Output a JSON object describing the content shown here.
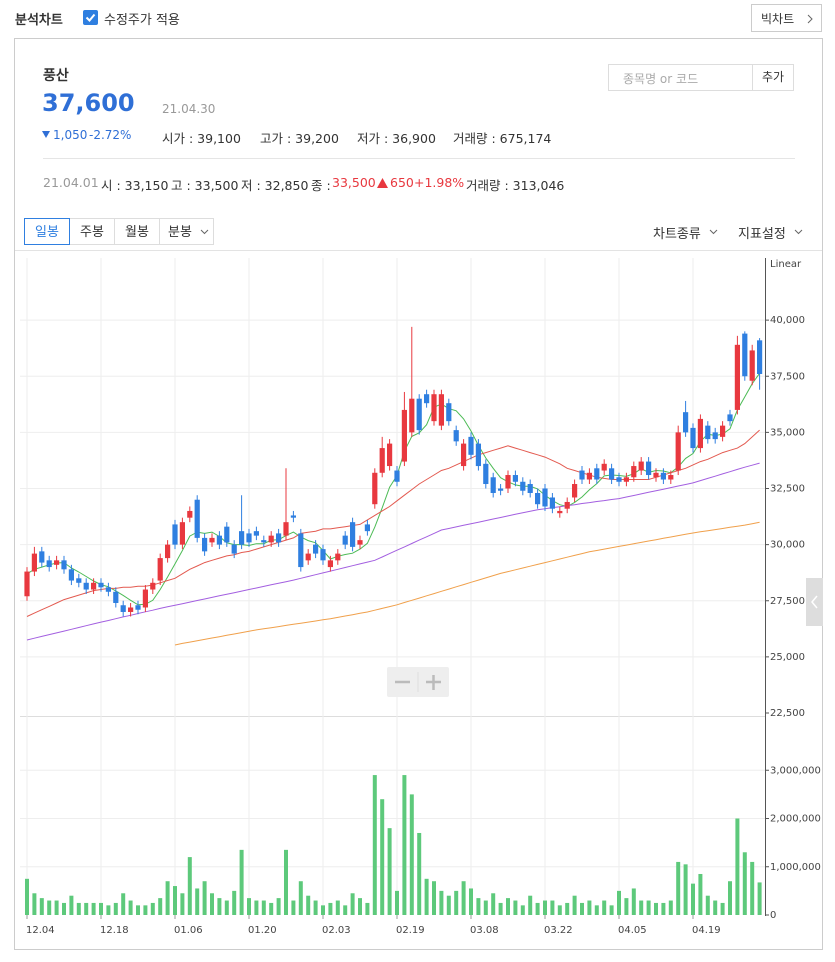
{
  "page": {
    "tab": "분석차트",
    "adjusted_price": "수정주가 적용",
    "big_chart": "빅차트"
  },
  "stock": {
    "name": "풍산",
    "price": "37,600",
    "date": "21.04.30",
    "change": "1,050",
    "change_rate": "-2.72%",
    "stats": [
      "시가 : 39,100",
      "고가 : 39,200",
      "저가 : 36,900",
      "거래량 : 675,174"
    ]
  },
  "search": {
    "placeholder": "종목명 or 코드",
    "button": "추가"
  },
  "daily": {
    "date": "21.04.01",
    "open": "시 : 33,150",
    "high": "고 : 33,500",
    "low": "저 : 32,850",
    "close_label": "종 :",
    "close": "33,500",
    "change": "650",
    "change_rate": "+1.98%",
    "volume": "거래량 : 313,046"
  },
  "toolbar": {
    "periods": [
      "일봉",
      "주봉",
      "월봉",
      "분봉"
    ],
    "menus": [
      "차트종류",
      "지표설정"
    ]
  },
  "chart_data": {
    "type": "candlestick",
    "y_axis_label": "Linear",
    "grid": true,
    "up_color": "#e8383f",
    "down_color": "#2f7fe0",
    "volume_color": "#5dc97b",
    "categories": [
      "12.04",
      null,
      null,
      null,
      null,
      null,
      null,
      null,
      null,
      null,
      "12.18",
      null,
      null,
      null,
      null,
      null,
      null,
      null,
      null,
      null,
      "01.06",
      null,
      null,
      null,
      null,
      null,
      null,
      null,
      null,
      null,
      "01.20",
      null,
      null,
      null,
      null,
      null,
      null,
      null,
      null,
      null,
      "02.03",
      null,
      null,
      null,
      null,
      null,
      null,
      null,
      null,
      null,
      "02.19",
      null,
      null,
      null,
      null,
      null,
      null,
      null,
      null,
      null,
      "03.08",
      null,
      null,
      null,
      null,
      null,
      null,
      null,
      null,
      null,
      "03.22",
      null,
      null,
      null,
      null,
      null,
      null,
      null,
      null,
      null,
      "04.05",
      null,
      null,
      null,
      null,
      null,
      null,
      null,
      null,
      null,
      "04.19",
      null,
      null,
      null,
      null,
      null,
      null,
      null,
      null,
      null
    ],
    "open": [
      27700,
      28800,
      29700,
      29300,
      29100,
      29300,
      28900,
      28500,
      28300,
      28000,
      28300,
      28100,
      27900,
      27300,
      27000,
      27300,
      27200,
      28000,
      28400,
      29400,
      30900,
      30000,
      31200,
      32000,
      30300,
      30100,
      30400,
      30800,
      30000,
      30600,
      30500,
      30600,
      30200,
      30100,
      30500,
      30400,
      31300,
      30500,
      29300,
      30000,
      29800,
      29000,
      29300,
      30400,
      31000,
      30000,
      30900,
      31800,
      33200,
      33500,
      33300,
      33700,
      35000,
      36500,
      36700,
      35500,
      35300,
      36300,
      35100,
      33500,
      34800,
      34500,
      33600,
      33000,
      32500,
      32500,
      33100,
      32800,
      32700,
      32300,
      32500,
      32100,
      31400,
      31600,
      32100,
      33300,
      32900,
      33400,
      33300,
      33400,
      33000,
      32800,
      33000,
      33300,
      33700,
      33000,
      33200,
      32900,
      33300,
      35900,
      35200,
      34300,
      35300,
      35000,
      34800,
      35800,
      36000,
      39400,
      37300,
      39100
    ],
    "high": [
      29000,
      29900,
      29900,
      29500,
      29500,
      29500,
      29100,
      28700,
      28500,
      28500,
      28500,
      28300,
      28100,
      27500,
      27400,
      27500,
      28200,
      28500,
      29600,
      30200,
      31100,
      31200,
      31700,
      32200,
      30500,
      30500,
      30600,
      31000,
      30200,
      32200,
      30700,
      30800,
      30400,
      30600,
      30700,
      33400,
      31500,
      30700,
      29800,
      30200,
      30000,
      29500,
      29800,
      30600,
      31200,
      30400,
      31100,
      33400,
      34800,
      34700,
      33500,
      36800,
      39700,
      36700,
      36900,
      36900,
      36900,
      36500,
      35300,
      34700,
      35000,
      34700,
      33800,
      33200,
      32700,
      33300,
      33300,
      33000,
      32900,
      32500,
      32700,
      32300,
      31700,
      32100,
      32900,
      33500,
      33400,
      33600,
      33800,
      33600,
      33200,
      33200,
      33700,
      33900,
      33900,
      33400,
      33400,
      33300,
      35300,
      36400,
      35400,
      35800,
      35500,
      35200,
      35500,
      36000,
      39300,
      39500,
      38900,
      39200
    ],
    "low": [
      27500,
      28600,
      29000,
      28800,
      28900,
      28700,
      28200,
      28100,
      27800,
      27800,
      27900,
      27700,
      27200,
      26800,
      26800,
      26900,
      27000,
      27800,
      28200,
      29200,
      29800,
      29800,
      31000,
      30100,
      29500,
      29900,
      29800,
      29900,
      29400,
      29800,
      29900,
      30200,
      29900,
      29900,
      29900,
      30200,
      31000,
      28800,
      29100,
      29400,
      29100,
      28800,
      29100,
      29800,
      29700,
      29800,
      30400,
      31600,
      33000,
      33300,
      32600,
      33500,
      34800,
      34900,
      36100,
      35300,
      35100,
      35300,
      34400,
      33300,
      33800,
      33300,
      32500,
      32100,
      32200,
      32300,
      32600,
      32200,
      32100,
      31600,
      31500,
      31400,
      31200,
      31400,
      31900,
      32700,
      32700,
      32700,
      33100,
      32700,
      32600,
      32600,
      32800,
      33100,
      32900,
      32800,
      32700,
      32700,
      33100,
      34800,
      34100,
      34100,
      34500,
      34500,
      34600,
      35300,
      35800,
      37300,
      37100,
      36900
    ],
    "close": [
      28800,
      29600,
      29200,
      29000,
      29300,
      28900,
      28400,
      28300,
      28000,
      28300,
      28100,
      27900,
      27400,
      27000,
      27200,
      27100,
      28000,
      28300,
      29400,
      30000,
      30000,
      31000,
      31500,
      30300,
      29700,
      30300,
      30000,
      30100,
      29600,
      30000,
      30100,
      30400,
      30100,
      30400,
      30100,
      31000,
      31200,
      29000,
      29600,
      29600,
      29300,
      29300,
      29600,
      30000,
      29900,
      30200,
      30600,
      33200,
      34300,
      34500,
      32800,
      36000,
      36500,
      35100,
      36300,
      36700,
      36700,
      35500,
      34600,
      34500,
      34000,
      33500,
      32700,
      32300,
      32400,
      33100,
      32800,
      32400,
      32300,
      31800,
      31700,
      31600,
      31500,
      31900,
      32700,
      32900,
      33200,
      32900,
      33600,
      32900,
      32800,
      33000,
      33500,
      33700,
      33100,
      33200,
      32900,
      33100,
      35000,
      35000,
      34300,
      35600,
      34700,
      34700,
      35300,
      35500,
      38900,
      37500,
      38650,
      37600
    ],
    "volume": [
      750000,
      450000,
      350000,
      300000,
      300000,
      250000,
      400000,
      250000,
      250000,
      250000,
      250000,
      200000,
      250000,
      450000,
      300000,
      200000,
      200000,
      250000,
      350000,
      700000,
      600000,
      450000,
      1200000,
      550000,
      700000,
      450000,
      350000,
      300000,
      500000,
      1350000,
      350000,
      300000,
      300000,
      250000,
      350000,
      1350000,
      300000,
      700000,
      400000,
      300000,
      200000,
      250000,
      300000,
      200000,
      450000,
      350000,
      250000,
      2900000,
      2400000,
      1800000,
      500000,
      2900000,
      2500000,
      1700000,
      750000,
      700000,
      500000,
      400000,
      500000,
      700000,
      550000,
      350000,
      300000,
      450000,
      250000,
      350000,
      300000,
      200000,
      400000,
      250000,
      300000,
      300000,
      200000,
      250000,
      400000,
      250000,
      300000,
      200000,
      300000,
      200000,
      500000,
      350000,
      550000,
      300000,
      300000,
      250000,
      250000,
      300000,
      1100000,
      1050000,
      650000,
      850000,
      400000,
      300000,
      250000,
      700000,
      2000000,
      1300000,
      1100000,
      675174
    ],
    "series": [
      {
        "color": "#4cbb55",
        "values": [
          28700,
          28900,
          29000,
          29100,
          29180,
          29200,
          28960,
          28780,
          28580,
          28380,
          28220,
          28120,
          27940,
          27740,
          27520,
          27320,
          27340,
          27520,
          28000,
          28560,
          29140,
          29740,
          30380,
          30560,
          30500,
          30560,
          30360,
          30080,
          30000,
          30000,
          29960,
          30040,
          30040,
          30200,
          30220,
          30400,
          30560,
          30340,
          30180,
          30080,
          29740,
          29360,
          29480,
          29560,
          29620,
          29800,
          30060,
          30780,
          31640,
          32560,
          33080,
          34160,
          34820,
          34980,
          35340,
          36120,
          36260,
          36060,
          35960,
          35600,
          35060,
          34420,
          33860,
          33400,
          32980,
          32800,
          32660,
          32600,
          32600,
          32480,
          32200,
          31960,
          31780,
          31700,
          31880,
          32120,
          32440,
          32720,
          33060,
          33100,
          33080,
          33040,
          33160,
          33380,
          33220,
          33300,
          33280,
          33200,
          33460,
          33840,
          34060,
          34600,
          34920,
          34860,
          34920,
          35160,
          36000,
          36580,
          37170,
          37630
        ]
      },
      {
        "color": "#e35a50",
        "values": [
          26800,
          26950,
          27100,
          27250,
          27400,
          27550,
          27650,
          27750,
          27850,
          27950,
          28000,
          28050,
          28050,
          28100,
          28100,
          28150,
          28150,
          28200,
          28300,
          28400,
          28500,
          28700,
          28900,
          29050,
          29200,
          29300,
          29400,
          29500,
          29550,
          29650,
          29700,
          29800,
          29900,
          30000,
          30100,
          30200,
          30300,
          30500,
          30550,
          30600,
          30700,
          30700,
          30750,
          30800,
          30850,
          30900,
          31100,
          31300,
          31500,
          31700,
          31950,
          32200,
          32450,
          32700,
          32900,
          33100,
          33300,
          33400,
          33550,
          33700,
          33850,
          34000,
          34100,
          34200,
          34300,
          34400,
          34300,
          34200,
          34100,
          34000,
          33900,
          33750,
          33600,
          33400,
          33300,
          33200,
          33100,
          33000,
          32950,
          32900,
          32900,
          32900,
          32900,
          32900,
          32900,
          33000,
          33100,
          33200,
          33300,
          33400,
          33550,
          33700,
          33800,
          33950,
          34100,
          34200,
          34300,
          34500,
          34800,
          35100
        ]
      },
      {
        "color": "#a35fe0",
        "values": [
          25750,
          25830,
          25910,
          25990,
          26070,
          26150,
          26230,
          26310,
          26390,
          26470,
          26550,
          26620,
          26700,
          26780,
          26850,
          26930,
          27010,
          27080,
          27160,
          27230,
          27300,
          27370,
          27440,
          27510,
          27580,
          27650,
          27720,
          27790,
          27860,
          27930,
          28000,
          28070,
          28140,
          28210,
          28280,
          28350,
          28420,
          28500,
          28580,
          28660,
          28740,
          28820,
          28900,
          28980,
          29060,
          29140,
          29220,
          29300,
          29450,
          29600,
          29750,
          29900,
          30050,
          30200,
          30350,
          30500,
          30650,
          30720,
          30790,
          30860,
          30930,
          31000,
          31070,
          31140,
          31210,
          31280,
          31350,
          31420,
          31490,
          31550,
          31600,
          31650,
          31690,
          31740,
          31780,
          31830,
          31870,
          31920,
          31960,
          32010,
          32050,
          32120,
          32190,
          32260,
          32330,
          32400,
          32470,
          32540,
          32610,
          32680,
          32750,
          32850,
          32950,
          33050,
          33150,
          33250,
          33350,
          33450,
          33540,
          33630
        ]
      },
      {
        "color": "#f0a04b",
        "values": [
          null,
          null,
          null,
          null,
          null,
          null,
          null,
          null,
          null,
          null,
          null,
          null,
          null,
          null,
          null,
          null,
          null,
          null,
          null,
          null,
          25530,
          25600,
          25660,
          25720,
          25780,
          25840,
          25900,
          25960,
          26020,
          26080,
          26140,
          26200,
          26250,
          26300,
          26350,
          26400,
          26450,
          26500,
          26550,
          26600,
          26650,
          26700,
          26760,
          26820,
          26880,
          26940,
          27000,
          27080,
          27160,
          27240,
          27320,
          27420,
          27520,
          27620,
          27720,
          27820,
          27920,
          28020,
          28120,
          28220,
          28320,
          28420,
          28520,
          28620,
          28720,
          28800,
          28880,
          28960,
          29040,
          29120,
          29200,
          29280,
          29360,
          29440,
          29520,
          29600,
          29680,
          29740,
          29800,
          29860,
          29920,
          29980,
          30040,
          30100,
          30160,
          30220,
          30280,
          30340,
          30400,
          30460,
          30520,
          30570,
          30620,
          30670,
          30720,
          30770,
          30820,
          30870,
          30930,
          31000
        ]
      }
    ],
    "ylim": [
      22500,
      42500
    ],
    "yticks": [
      {
        "value": 22500,
        "label": "22,500"
      },
      {
        "value": 25000,
        "label": "25,000"
      },
      {
        "value": 27500,
        "label": "27,500"
      },
      {
        "value": 30000,
        "label": "30,000"
      },
      {
        "value": 32500,
        "label": "32,500"
      },
      {
        "value": 35000,
        "label": "35,000"
      },
      {
        "value": 37500,
        "label": "37,500"
      },
      {
        "value": 40000,
        "label": "40,000"
      }
    ],
    "y2lim": [
      0,
      4000000
    ],
    "y2ticks": [
      0,
      {
        "value": 1000000,
        "label": "1,000,000"
      },
      {
        "value": 2000000,
        "label": "2,000,000"
      },
      {
        "value": 3000000,
        "label": "3,000,000"
      }
    ]
  }
}
